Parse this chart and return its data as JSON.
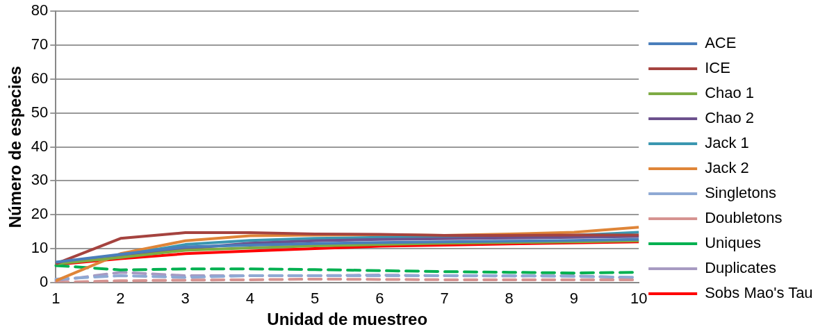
{
  "chart_data": {
    "type": "line",
    "xlabel": "Unidad de muestreo",
    "ylabel": "Número de especies",
    "categories": [
      "1",
      "2",
      "3",
      "4",
      "5",
      "6",
      "7",
      "8",
      "9",
      "10"
    ],
    "ylim": [
      0,
      80
    ],
    "yticks": [
      0,
      10,
      20,
      30,
      40,
      50,
      60,
      70,
      80
    ],
    "grid": "y",
    "legend": "right",
    "marker": "none",
    "series": [
      {
        "name": "ACE",
        "color": "#4a7ebb",
        "values": [
          6,
          8.3,
          10.5,
          11,
          11.5,
          11.8,
          12,
          12.2,
          12.4,
          12.7
        ]
      },
      {
        "name": "ICE",
        "color": "#a5433f",
        "values": [
          5.5,
          13,
          14.7,
          14.7,
          14.3,
          14.2,
          13.9,
          13.9,
          14,
          14
        ]
      },
      {
        "name": "Chao 1",
        "color": "#7eab44",
        "values": [
          5.5,
          7.4,
          9.5,
          10.2,
          10.8,
          11.2,
          11.6,
          11.8,
          12,
          12.3
        ]
      },
      {
        "name": "Chao 2",
        "color": "#6c518d",
        "values": [
          5.8,
          7.5,
          10,
          11.6,
          12.3,
          12.7,
          12.9,
          13.1,
          13.3,
          13.6
        ]
      },
      {
        "name": "Jack 1",
        "color": "#3b97b0",
        "values": [
          5.8,
          8,
          11.2,
          12.4,
          13,
          13.3,
          13.3,
          13.6,
          13.9,
          14.8
        ]
      },
      {
        "name": "Jack 2",
        "color": "#df8538",
        "values": [
          0.5,
          8.5,
          12.3,
          13.8,
          14,
          14.1,
          13.9,
          14.3,
          14.8,
          16.3
        ]
      },
      {
        "name": "Singletons",
        "color": "#8fa9d4",
        "line_style": "dashed",
        "values": [
          1,
          2,
          1.5,
          2,
          2,
          2,
          2,
          2,
          1.8,
          1.5
        ]
      },
      {
        "name": "Doubletons",
        "color": "#d69391",
        "line_style": "dashed",
        "values": [
          0,
          0.5,
          0.7,
          0.8,
          1,
          0.9,
          0.8,
          0.8,
          0.8,
          0.8
        ]
      },
      {
        "name": "Uniques",
        "color": "#00b050",
        "line_style": "dashed",
        "values": [
          5,
          3.7,
          4,
          4,
          3.8,
          3.5,
          3.2,
          3,
          2.8,
          3
        ]
      },
      {
        "name": "Duplicates",
        "color": "#a79ac2",
        "line_style": "dashed",
        "values": [
          0.5,
          3,
          2,
          2,
          2,
          2.2,
          2,
          1.9,
          2,
          1.3
        ]
      },
      {
        "name": "Sobs Mao's Tau",
        "color": "#ff0000",
        "line_style": "solid",
        "values": [
          5.3,
          7,
          8.5,
          9.3,
          10,
          10.7,
          11,
          11.4,
          11.7,
          12
        ]
      }
    ]
  }
}
